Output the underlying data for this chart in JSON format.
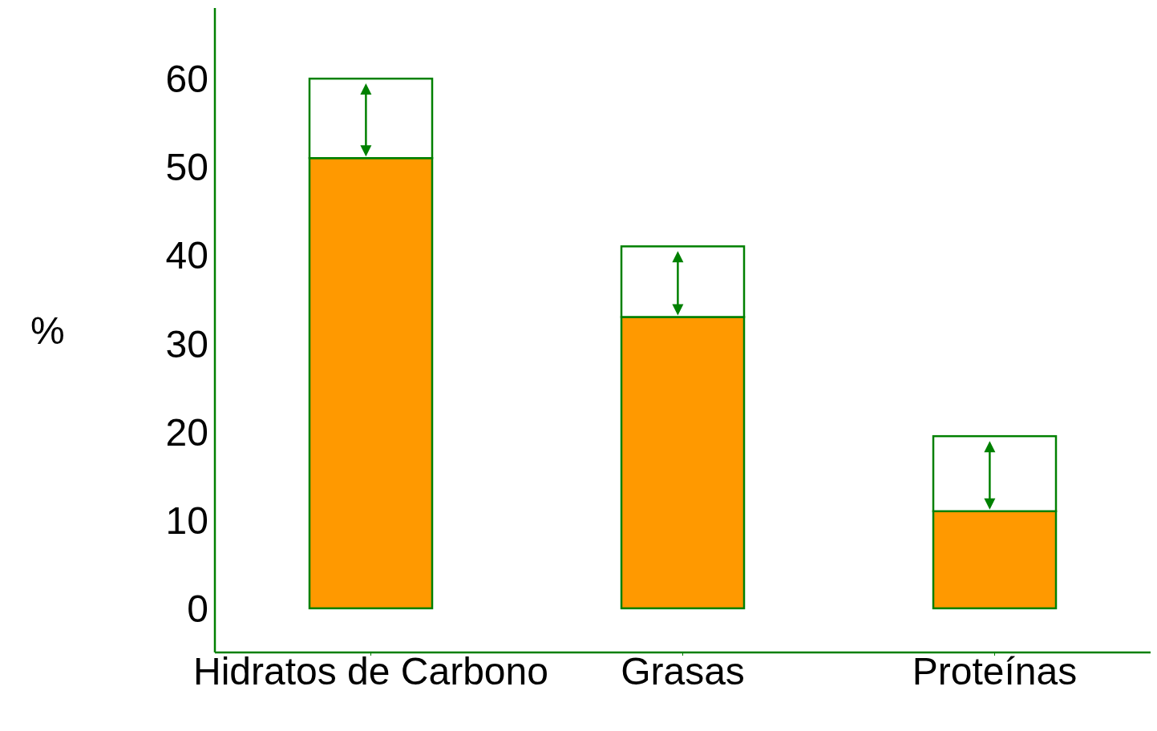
{
  "chart_data": {
    "type": "bar",
    "ylabel": "%",
    "categories": [
      "Hidratos de Carbono",
      "Grasas",
      "Proteínas"
    ],
    "stacked": true,
    "series": [
      {
        "color": "#ff9900",
        "values": [
          51,
          33,
          11
        ]
      },
      {
        "color": "#ffffff",
        "values": [
          9,
          8,
          8.5
        ]
      }
    ],
    "ylim": [
      -5,
      68
    ],
    "yticks": [
      0,
      10,
      20,
      30,
      40,
      50,
      60
    ]
  }
}
